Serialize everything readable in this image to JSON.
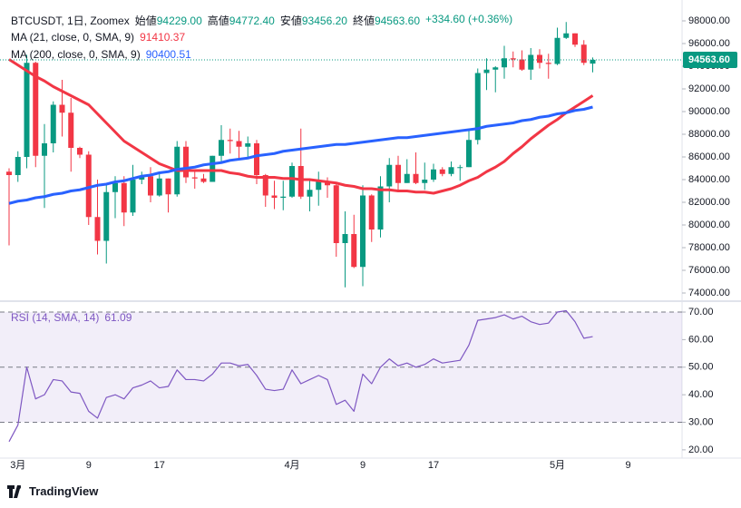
{
  "chart_data": {
    "type": "candlestick",
    "symbol": "BTCUSDT, 1日, Zoomex",
    "header_labels": [
      "始値",
      "高値",
      "安値",
      "終値"
    ],
    "header_values": [
      {
        "value": 94229,
        "label": "94229.00"
      },
      {
        "value": 94772.4,
        "label": "94772.40"
      },
      {
        "value": 93456.2,
        "label": "93456.20"
      },
      {
        "value": 94563.6,
        "label": "94563.60"
      }
    ],
    "change": "+334.60 (+0.36%)",
    "up_color": "#089981",
    "down_color": "#f23645",
    "categories": [
      null,
      "3月",
      null,
      null,
      null,
      null,
      null,
      null,
      null,
      "9",
      null,
      null,
      null,
      null,
      null,
      null,
      null,
      "17",
      null,
      null,
      null,
      null,
      null,
      null,
      null,
      null,
      null,
      null,
      null,
      null,
      null,
      null,
      "4月",
      null,
      null,
      null,
      null,
      null,
      null,
      null,
      "9",
      null,
      null,
      null,
      null,
      null,
      null,
      null,
      "17",
      null,
      null,
      null,
      null,
      null,
      null,
      null,
      null,
      null,
      null,
      null,
      null,
      null,
      "5月",
      null,
      null,
      null,
      null,
      null,
      null,
      null,
      "9"
    ],
    "open": [
      84700,
      84400,
      86000,
      94300,
      86100,
      87200,
      90600,
      89900,
      86800,
      86200,
      80700,
      78600,
      82900,
      83700,
      81100,
      84000,
      84300,
      82600,
      84100,
      82700,
      86900,
      84200,
      84100,
      83800,
      86100,
      87500,
      87400,
      86900,
      87200,
      84400,
      82600,
      82400,
      82500,
      85200,
      82500,
      83100,
      83800,
      83500,
      78400,
      79200,
      76300,
      82600,
      79600,
      83400,
      85300,
      83700,
      84500,
      83700,
      84000,
      84900,
      84500,
      85100,
      85100,
      87500,
      93400,
      93700,
      93900,
      94700,
      94600,
      93700,
      95000,
      94300,
      94200,
      96500,
      96900,
      95900,
      94229,
      null,
      null,
      null,
      null
    ],
    "high": [
      85000,
      86500,
      95000,
      94400,
      88900,
      90900,
      92800,
      91200,
      86900,
      86500,
      84000,
      83600,
      84300,
      84300,
      85300,
      84700,
      85100,
      84700,
      84100,
      87400,
      87400,
      84800,
      84500,
      86100,
      88800,
      88500,
      88300,
      87800,
      87500,
      84500,
      83900,
      83900,
      85500,
      88500,
      83900,
      84700,
      84200,
      83800,
      81200,
      80900,
      83500,
      82700,
      84300,
      85900,
      86100,
      85800,
      86400,
      85500,
      85400,
      85100,
      85600,
      85300,
      88500,
      93800,
      94700,
      94000,
      95800,
      95300,
      95400,
      95600,
      95500,
      95100,
      97400,
      97900,
      96900,
      96300,
      94772.4,
      null,
      null,
      null,
      null
    ],
    "low": [
      78200,
      83800,
      85000,
      85100,
      81500,
      86400,
      87800,
      84700,
      85900,
      80000,
      77400,
      76600,
      80600,
      79900,
      80800,
      83600,
      82000,
      82500,
      81100,
      82500,
      83700,
      83200,
      83700,
      83800,
      85500,
      86300,
      85900,
      85800,
      83600,
      81600,
      81400,
      81300,
      82400,
      82300,
      81200,
      81700,
      82400,
      77200,
      74500,
      76200,
      74600,
      78500,
      78900,
      82000,
      83100,
      83700,
      83600,
      83100,
      83800,
      84300,
      84300,
      83900,
      85100,
      87100,
      91900,
      91700,
      92900,
      93900,
      93600,
      92800,
      93800,
      92900,
      94100,
      96400,
      95700,
      94100,
      93456.2,
      null,
      null,
      null,
      null
    ],
    "close": [
      84400,
      86000,
      94300,
      86100,
      87200,
      90600,
      89900,
      86800,
      86200,
      80700,
      78600,
      82900,
      83700,
      81100,
      84000,
      84300,
      82600,
      84100,
      82700,
      86900,
      84200,
      84100,
      83800,
      86100,
      87500,
      87400,
      86900,
      87200,
      84400,
      82600,
      82400,
      82500,
      85200,
      82500,
      83100,
      83800,
      83500,
      78400,
      79200,
      76300,
      82600,
      79600,
      83400,
      85300,
      83700,
      84500,
      83700,
      84000,
      84900,
      84500,
      85100,
      85100,
      87500,
      93400,
      93700,
      93900,
      94700,
      94600,
      93700,
      95000,
      94300,
      94200,
      96500,
      96900,
      95900,
      94300,
      94563.6,
      null,
      null,
      null,
      null
    ],
    "overlays": [
      {
        "name": "MA (21, close, 0, SMA, 9)",
        "color": "#f23645",
        "values": [
          94600,
          94100,
          93600,
          93100,
          92700,
          92200,
          91800,
          91400,
          91000,
          90600,
          89800,
          89000,
          88200,
          87400,
          86900,
          86400,
          85900,
          85400,
          85100,
          84800,
          84800,
          84800,
          84800,
          84800,
          84800,
          84600,
          84500,
          84300,
          84200,
          84200,
          84200,
          84100,
          84100,
          84000,
          84000,
          83900,
          83800,
          83700,
          83500,
          83400,
          83200,
          83200,
          83100,
          83100,
          83000,
          83000,
          82900,
          82900,
          82800,
          83000,
          83200,
          83500,
          83900,
          84200,
          84700,
          85100,
          85600,
          86300,
          86900,
          87600,
          88200,
          88800,
          89300,
          89900,
          90400,
          90900,
          91410.37,
          null,
          null,
          null,
          null
        ]
      },
      {
        "name": "MA (200, close, 0, SMA, 9)",
        "color": "#2962ff",
        "values": [
          81900,
          82100,
          82200,
          82400,
          82500,
          82700,
          82800,
          83000,
          83100,
          83300,
          83500,
          83600,
          83800,
          83900,
          84100,
          84300,
          84400,
          84600,
          84700,
          84900,
          85000,
          85100,
          85300,
          85400,
          85500,
          85700,
          85800,
          85900,
          86100,
          86200,
          86300,
          86500,
          86600,
          86700,
          86800,
          86900,
          87000,
          87100,
          87100,
          87200,
          87300,
          87400,
          87500,
          87600,
          87700,
          87700,
          87800,
          87900,
          88000,
          88100,
          88200,
          88300,
          88400,
          88500,
          88700,
          88800,
          88900,
          89000,
          89200,
          89300,
          89500,
          89600,
          89800,
          89900,
          90100,
          90200,
          90400.51,
          null,
          null,
          null,
          null
        ]
      }
    ],
    "last_price": {
      "value": 94563.6,
      "label": "94563.60",
      "color": "#089981"
    },
    "ylim": [
      73440,
      99840
    ],
    "yticks": [
      {
        "value": 74000,
        "label": "74000.00"
      },
      {
        "value": 76000,
        "label": "76000.00"
      },
      {
        "value": 78000,
        "label": "78000.00"
      },
      {
        "value": 80000,
        "label": "80000.00"
      },
      {
        "value": 82000,
        "label": "82000.00"
      },
      {
        "value": 84000,
        "label": "84000.00"
      },
      {
        "value": 86000,
        "label": "86000.00"
      },
      {
        "value": 88000,
        "label": "88000.00"
      },
      {
        "value": 90000,
        "label": "90000.00"
      },
      {
        "value": 92000,
        "label": "92000.00"
      },
      {
        "value": 94000,
        "label": "94000.00"
      },
      {
        "value": 96000,
        "label": "96000.00"
      },
      {
        "value": 98000,
        "label": "98000.00"
      }
    ],
    "grid": false,
    "rsi": {
      "name": "RSI (14, SMA, 14)",
      "color": "#7e57c2",
      "values": [
        23,
        29,
        50,
        38.5,
        40,
        45.5,
        45,
        41,
        40.5,
        34,
        31.5,
        39,
        40,
        38.5,
        42.5,
        43.5,
        45,
        42.5,
        43,
        49,
        45.5,
        45.5,
        45,
        47.5,
        51.5,
        51.5,
        50.5,
        51,
        47,
        42,
        41.5,
        42,
        49,
        44,
        45.5,
        47,
        45.5,
        36.5,
        38,
        34,
        47.5,
        44,
        50,
        53,
        50.5,
        51.5,
        50,
        51,
        53,
        51.5,
        52,
        52.5,
        58,
        67,
        67.5,
        68,
        69,
        67.5,
        68.5,
        66.5,
        65.5,
        66,
        70,
        70.5,
        66.5,
        60.5,
        61.09,
        null,
        null,
        null,
        null
      ],
      "levels": [
        70,
        50,
        30
      ],
      "band_fill": "rgba(126,87,194,0.1)",
      "ylim": [
        17,
        73.3
      ],
      "yticks": [
        {
          "value": 20,
          "label": "20.00"
        },
        {
          "value": 30,
          "label": "30.00"
        },
        {
          "value": 40,
          "label": "40.00"
        },
        {
          "value": 50,
          "label": "50.00"
        },
        {
          "value": 60,
          "label": "60.00"
        },
        {
          "value": 70,
          "label": "70.00"
        }
      ]
    },
    "branding": "TradingView"
  }
}
